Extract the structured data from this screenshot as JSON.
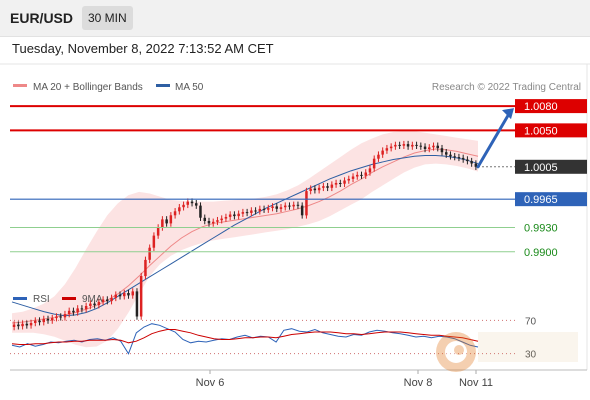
{
  "header": {
    "pair": "EUR/USD",
    "timeframe": "30 MIN"
  },
  "datetime": "Tuesday, November 8, 2022 7:13:52 AM CET",
  "legend": {
    "ma20": "MA 20 + Bollinger Bands",
    "ma50": "MA 50",
    "credit": "Research © 2022 Trading Central",
    "rsi": "RSI",
    "rsi_ma": "9MA"
  },
  "colors": {
    "resistance": "#dd0000",
    "pivot": "#2e63b8",
    "support": "#1a8a1a",
    "ma20": "#ee8888",
    "ma50": "#2e5fa3",
    "candle_up": "#dd2222",
    "candle_down": "#222222",
    "arrow": "#2e63b8"
  },
  "chart_data": [
    {
      "type": "candlestick",
      "x_axis": {
        "labels": [
          "Nov 6",
          "Nov 8",
          "Nov 11"
        ]
      },
      "y_range": [
        0.9875,
        1.009
      ],
      "levels": [
        {
          "value": 1.008,
          "label": "1.0080",
          "kind": "resistance"
        },
        {
          "value": 1.005,
          "label": "1.0050",
          "kind": "resistance"
        },
        {
          "value": 1.0005,
          "label": "1.0005",
          "kind": "last"
        },
        {
          "value": 0.9965,
          "label": "0.9965",
          "kind": "pivot"
        },
        {
          "value": 0.993,
          "label": "0.9930",
          "kind": "support"
        },
        {
          "value": 0.99,
          "label": "0.9900",
          "kind": "support"
        }
      ],
      "close": [
        0.981,
        0.9808,
        0.9811,
        0.9809,
        0.9812,
        0.9815,
        0.9813,
        0.9817,
        0.9815,
        0.9818,
        0.982,
        0.9819,
        0.9823,
        0.9827,
        0.9825,
        0.983,
        0.9829,
        0.9833,
        0.9836,
        0.9834,
        0.9838,
        0.9841,
        0.9839,
        0.9843,
        0.9847,
        0.9845,
        0.9849,
        0.9846,
        0.9851,
        0.982,
        0.987,
        0.989,
        0.9905,
        0.992,
        0.993,
        0.994,
        0.9935,
        0.9945,
        0.995,
        0.9955,
        0.9958,
        0.9962,
        0.996,
        0.9957,
        0.9942,
        0.9938,
        0.9935,
        0.9937,
        0.9939,
        0.9941,
        0.9943,
        0.9946,
        0.9944,
        0.9947,
        0.9949,
        0.9948,
        0.9951,
        0.995,
        0.9953,
        0.9952,
        0.9954,
        0.9956,
        0.9953,
        0.9955,
        0.9957,
        0.9956,
        0.9958,
        0.9957,
        0.9945,
        0.9975,
        0.9978,
        0.9976,
        0.9979,
        0.9981,
        0.9979,
        0.9983,
        0.9985,
        0.9984,
        0.9988,
        0.999,
        0.9993,
        0.9995,
        0.9994,
        0.9998,
        1.0003,
        1.0015,
        1.002,
        1.0025,
        1.0028,
        1.003,
        1.0032,
        1.0031,
        1.0033,
        1.003,
        1.0032,
        1.0031,
        1.003,
        1.0027,
        1.0029,
        1.0031,
        1.0028,
        1.0023,
        1.002,
        1.0018,
        1.0017,
        1.0016,
        1.0014,
        1.0012,
        1.0009,
        1.0005
      ],
      "ma20": [
        0.9812,
        0.9813,
        0.9815,
        0.9817,
        0.9819,
        0.9822,
        0.9825,
        0.9829,
        0.9834,
        0.984,
        0.9848,
        0.9858,
        0.987,
        0.9883,
        0.9895,
        0.9907,
        0.9917,
        0.9925,
        0.9931,
        0.9935,
        0.9937,
        0.9939,
        0.9941,
        0.9943,
        0.9945,
        0.9947,
        0.995,
        0.9953,
        0.9957,
        0.9962,
        0.9968,
        0.9975,
        0.9983,
        0.999,
        0.9998,
        1.0005,
        1.0011,
        1.0017,
        1.0022,
        1.0025,
        1.0027,
        1.0026,
        1.0024,
        1.0021,
        1.0018
      ],
      "bb_upper": [
        0.9824,
        0.9826,
        0.983,
        0.9836,
        0.9845,
        0.986,
        0.988,
        0.9903,
        0.9925,
        0.9945,
        0.996,
        0.997,
        0.9974,
        0.9972,
        0.9968,
        0.9964,
        0.9963,
        0.9962,
        0.9962,
        0.9962,
        0.9963,
        0.9964,
        0.9965,
        0.9966,
        0.9968,
        0.9971,
        0.9976,
        0.9982,
        0.999,
        0.9999,
        1.0008,
        1.0017,
        1.0026,
        1.0034,
        1.004,
        1.0045,
        1.0048,
        1.0049,
        1.0049,
        1.0047,
        1.0045,
        1.0043,
        1.0041,
        1.0039,
        1.0037
      ],
      "bb_lower": [
        0.98,
        0.98,
        0.98,
        0.9798,
        0.9795,
        0.979,
        0.9785,
        0.9782,
        0.9783,
        0.979,
        0.9805,
        0.9825,
        0.9848,
        0.987,
        0.9885,
        0.9895,
        0.9902,
        0.9907,
        0.9911,
        0.9914,
        0.9916,
        0.9918,
        0.992,
        0.9922,
        0.9924,
        0.9926,
        0.9928,
        0.9931,
        0.9934,
        0.9938,
        0.9944,
        0.9951,
        0.9958,
        0.9965,
        0.9974,
        0.9982,
        0.999,
        0.9998,
        1.0004,
        1.0008,
        1.0009,
        1.0008,
        1.0006,
        1.0003,
        0.9999
      ],
      "ma50": [
        0.9838,
        0.9834,
        0.983,
        0.9826,
        0.9823,
        0.9821,
        0.9822,
        0.9825,
        0.983,
        0.9837,
        0.9845,
        0.9853,
        0.9861,
        0.9869,
        0.9877,
        0.9885,
        0.9893,
        0.9901,
        0.9909,
        0.9917,
        0.9925,
        0.9933,
        0.994,
        0.9947,
        0.9954,
        0.996,
        0.9966,
        0.9972,
        0.9978,
        0.9984,
        0.999,
        0.9995,
        1.0,
        1.0004,
        1.0008,
        1.0011,
        1.0014,
        1.0016,
        1.0018,
        1.0019,
        1.0019,
        1.0018,
        1.0016,
        1.0013,
        1.0009
      ]
    },
    {
      "type": "line",
      "y_range": [
        20,
        80
      ],
      "ticks": [
        {
          "value": 70,
          "label": "70"
        },
        {
          "value": 30,
          "label": "30"
        }
      ],
      "series": [
        {
          "name": "RSI",
          "values": [
            40,
            38,
            42,
            39,
            41,
            44,
            43,
            45,
            46,
            44,
            47,
            48,
            46,
            49,
            45,
            30,
            55,
            62,
            66,
            64,
            60,
            56,
            47,
            43,
            45,
            44,
            46,
            48,
            47,
            50,
            52,
            49,
            51,
            50,
            44,
            58,
            60,
            57,
            56,
            59,
            55,
            53,
            51,
            50,
            53,
            52,
            56,
            58,
            57,
            55,
            54,
            52,
            50,
            51,
            49,
            51,
            50,
            48,
            44,
            40,
            38
          ]
        },
        {
          "name": "9MA",
          "values": [
            42,
            41,
            41,
            42,
            42,
            43,
            44,
            44,
            45,
            45,
            46,
            46,
            46,
            47,
            46,
            43,
            45,
            49,
            54,
            57,
            59,
            59,
            57,
            55,
            52,
            50,
            48,
            47,
            47,
            48,
            49,
            49,
            50,
            50,
            49,
            51,
            53,
            54,
            55,
            56,
            56,
            56,
            55,
            54,
            54,
            53,
            54,
            55,
            56,
            56,
            56,
            55,
            54,
            53,
            52,
            52,
            51,
            50,
            49,
            47,
            45
          ]
        }
      ]
    }
  ]
}
